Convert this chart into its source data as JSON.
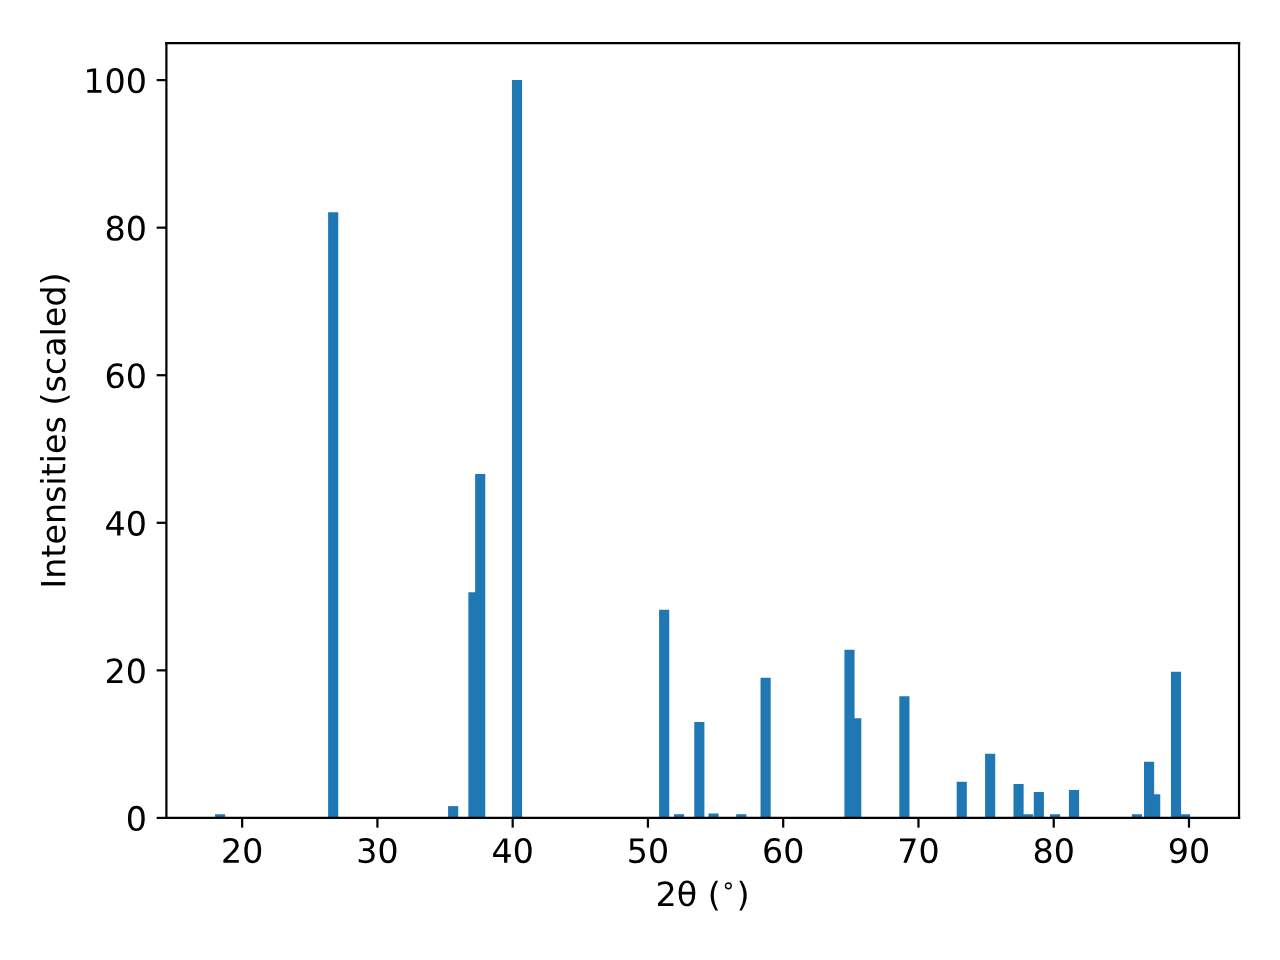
{
  "chart_data": {
    "type": "bar",
    "xlabel": "2θ ($^{∘}$)",
    "ylabel": "Intensities (scaled)",
    "x": [
      18.37,
      26.73,
      35.6,
      37.1,
      37.6,
      40.32,
      51.2,
      52.3,
      53.8,
      54.85,
      56.9,
      58.7,
      64.9,
      65.4,
      68.96,
      73.2,
      75.3,
      77.4,
      78.1,
      78.9,
      80.1,
      81.5,
      86.15,
      87.05,
      87.5,
      89.04,
      89.7
    ],
    "values": [
      0.5,
      82.1,
      1.6,
      30.6,
      46.6,
      100,
      28.2,
      0.5,
      13.0,
      0.6,
      0.5,
      19.0,
      22.8,
      13.5,
      16.5,
      4.9,
      8.7,
      4.6,
      0.5,
      3.5,
      0.5,
      3.8,
      0.5,
      7.6,
      3.2,
      19.8,
      0.5
    ],
    "color": "#1f77b4",
    "xlim": [
      14.4,
      93.7
    ],
    "ylim": [
      0,
      105
    ],
    "xticks": [
      20,
      30,
      40,
      50,
      60,
      70,
      80,
      90
    ],
    "yticks": [
      0,
      20,
      40,
      60,
      80,
      100
    ],
    "grid": false,
    "legend": false
  }
}
